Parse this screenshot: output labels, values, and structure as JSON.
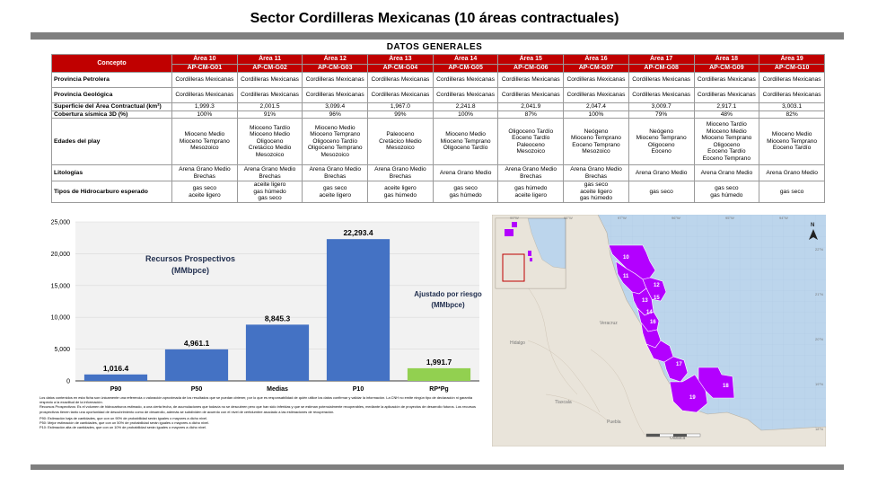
{
  "title": "Sector Cordilleras Mexicanas (10 áreas contractuales)",
  "subtitle": "DATOS GENERALES",
  "table": {
    "concept_header": "Concepto",
    "areas": [
      {
        "name": "Área 10",
        "code": "AP-CM-G01"
      },
      {
        "name": "Área 11",
        "code": "AP-CM-G02"
      },
      {
        "name": "Área 12",
        "code": "AP-CM-G03"
      },
      {
        "name": "Área 13",
        "code": "AP-CM-G04"
      },
      {
        "name": "Área 14",
        "code": "AP-CM-G05"
      },
      {
        "name": "Área 15",
        "code": "AP-CM-G06"
      },
      {
        "name": "Área 16",
        "code": "AP-CM-G07"
      },
      {
        "name": "Área 17",
        "code": "AP-CM-G08"
      },
      {
        "name": "Área 18",
        "code": "AP-CM-G09"
      },
      {
        "name": "Área 19",
        "code": "AP-CM-G10"
      }
    ],
    "rows": [
      {
        "label": "Provincia Petrolera",
        "h": 17,
        "values": [
          "Cordilleras Mexicanas",
          "Cordilleras Mexicanas",
          "Cordilleras Mexicanas",
          "Cordilleras Mexicanas",
          "Cordilleras Mexicanas",
          "Cordilleras Mexicanas",
          "Cordilleras Mexicanas",
          "Cordilleras Mexicanas",
          "Cordilleras Mexicanas",
          "Cordilleras Mexicanas"
        ]
      },
      {
        "label": "Provincia Geológica",
        "h": 17,
        "values": [
          "Cordilleras Mexicanas",
          "Cordilleras Mexicanas",
          "Cordilleras Mexicanas",
          "Cordilleras Mexicanas",
          "Cordilleras Mexicanas",
          "Cordilleras Mexicanas",
          "Cordilleras Mexicanas",
          "Cordilleras Mexicanas",
          "Cordilleras Mexicanas",
          "Cordilleras Mexicanas"
        ]
      },
      {
        "label": "Superficie del Área Contractual (km²)",
        "h": 8,
        "sep": true,
        "values": [
          "1,999.3",
          "2,001.5",
          "3,099.4",
          "1,967.0",
          "2,241.8",
          "2,041.9",
          "2,047.4",
          "3,009.7",
          "2,917.1",
          "3,003.1"
        ]
      },
      {
        "label": "Cobertura sísmica 3D (%)",
        "h": 8,
        "values": [
          "100%",
          "91%",
          "96%",
          "99%",
          "100%",
          "87%",
          "100%",
          "79%",
          "48%",
          "82%"
        ]
      },
      {
        "label": "Edades del play",
        "h": 52,
        "sep": true,
        "values": [
          "Mioceno Medio\nMioceno Temprano\nMesozoico",
          "Mioceno Tardío\nMioceno Medio\nOligoceno\nCretácico Medio\nMesozoico",
          "Mioceno Medio\nMioceno Temprano\nOligoceno Tardío\nOligoceno Temprano\nMesozoico",
          "Paleoceno\nCretácico Medio\nMesozoico",
          "Mioceno Medio\nMioceno Temprano\nOligoceno Tardío",
          "Oligoceno Tardío\nEoceno Tardío\nPaleoceno\nMesozoico",
          "Neógeno\nMioceno Temprano\nEoceno Temprano\nMesozoico",
          "Neógeno\nMioceno Temprano\nOligoceno\nEoceno",
          "Mioceno Tardío\nMioceno Medio\nMioceno Temprano\nOligoceno\nEoceno Tardío\nEoceno Temprano",
          "Mioceno Medio\nMioceno Temprano\nEoceno Tardío"
        ]
      },
      {
        "label": "Litologías",
        "h": 18,
        "sep": true,
        "values": [
          "Arena Grano Medio\nBrechas",
          "Arena Grano Medio\nBrechas",
          "Arena Grano Medio\nBrechas",
          "Arena Grano Medio\nBrechas",
          "Arena Grano Medio",
          "Arena Grano Medio\nBrechas",
          "Arena Grano Medio\nBrechas",
          "Arena Grano Medio",
          "Arena Grano Medio",
          "Arena Grano Medio"
        ]
      },
      {
        "label": "Tipos de Hidrocarburo esperado",
        "h": 23,
        "values": [
          "gas seco\naceite ligero",
          "aceite ligero\ngas húmedo\ngas seco",
          "gas seco\naceite ligero",
          "aceite ligero\ngas húmedo",
          "gas seco\ngas húmedo",
          "gas húmedo\naceite ligero",
          "gas seco\naceite ligero\ngas húmedo",
          "gas seco",
          "gas seco\ngas húmedo",
          "gas seco"
        ]
      }
    ]
  },
  "chart_data": {
    "type": "bar",
    "categories": [
      "P90",
      "P50",
      "Medias",
      "P10",
      "RP*Pg"
    ],
    "values": [
      1016.4,
      4961.1,
      8845.3,
      22293.4,
      1991.7
    ],
    "value_labels": [
      "1,016.4",
      "4,961.1",
      "8,845.3",
      "22,293.4",
      "1,991.7"
    ],
    "colors": [
      "#4472c4",
      "#4472c4",
      "#4472c4",
      "#4472c4",
      "#92d050"
    ],
    "ylim": [
      0,
      25000
    ],
    "yticks": [
      0,
      5000,
      10000,
      15000,
      20000,
      25000
    ],
    "ytick_labels": [
      "0",
      "5,000",
      "10,000",
      "15,000",
      "20,000",
      "25,000"
    ],
    "annotations": [
      "Recursos Prospectivos\n(MMbpce)",
      "Ajustado por riesgo\n(MMbpce)"
    ],
    "grid": true
  },
  "notes": [
    "Los datos contenidos en esta ficha son únicamente una referencia o valoración aproximada de los resultados que se puedan obtener, por lo que es responsabilidad de quién utilice los datos confirmar y validar la información. La CNH no emite ningún tipo de declaración ni garantía respecto a la exactitud de la información.",
    "Recursos Prospectivos: Es el volumen de hidrocarburos estimado, a una cierta fecha, de acumulaciones que todavía no se descubren pero que han sido inferidas y que se estiman potencialmente recuperables, mediante la aplicación de proyectos de desarrollo futuros. Los recursos prospectivos tienen tanto una oportunidad de descubrimiento como de desarrollo, además se subdividen de acuerdo con el nivel de certidumbre asociado a las estimaciones de recuperación.",
    "P90: Estimación baja de cantidades, que con un 90% de probabilidad serán iguales o mayores a dicho nivel.",
    "P50: Mejor estimación de cantidades, que con un 50% de probabilidad serán iguales o mayores a dicho nivel.",
    "P10: Estimación alta de cantidades, que con un 10% de probabilidad serán iguales o mayores a dicho nivel."
  ],
  "map": {
    "north": "N",
    "area_labels": [
      "10",
      "11",
      "12",
      "13",
      "14",
      "15",
      "16",
      "17",
      "18",
      "19"
    ],
    "place_labels": [
      "Hidalgo",
      "Veracruz",
      "Tlaxcala",
      "Puebla",
      "Oaxaca"
    ],
    "lat_labels": [
      "22°N",
      "21°N",
      "20°N",
      "19°N",
      "18°N"
    ],
    "lon_labels": [
      "99°W",
      "98°W",
      "97°W",
      "96°W",
      "95°W",
      "94°W"
    ],
    "area_color": "#b300ff"
  }
}
